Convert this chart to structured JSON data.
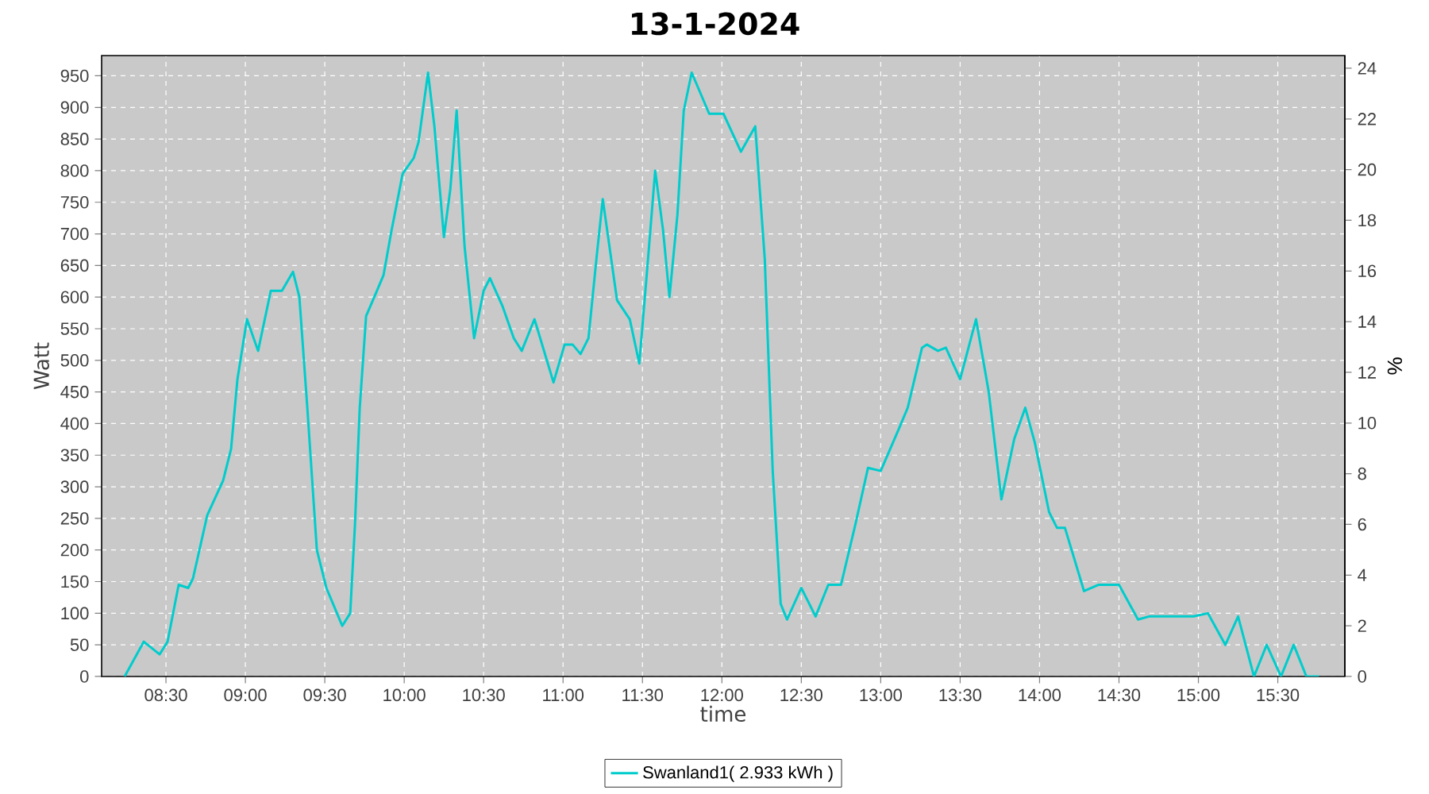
{
  "chart_data": {
    "type": "line",
    "title": "13-1-2024",
    "xlabel": "time",
    "ylabel": "Watt",
    "y2label": "%",
    "xlim": [
      8.095,
      15.922
    ],
    "ylim": [
      0,
      982
    ],
    "y2lim": [
      0,
      24.5
    ],
    "xticks": [
      {
        "value": 8.5,
        "label": "08:30"
      },
      {
        "value": 9,
        "label": "09:00"
      },
      {
        "value": 9.5,
        "label": "09:30"
      },
      {
        "value": 10,
        "label": "10:00"
      },
      {
        "value": 10.5,
        "label": "10:30"
      },
      {
        "value": 11,
        "label": "11:00"
      },
      {
        "value": 11.5,
        "label": "11:30"
      },
      {
        "value": 12,
        "label": "12:00"
      },
      {
        "value": 12.5,
        "label": "12:30"
      },
      {
        "value": 13,
        "label": "13:00"
      },
      {
        "value": 13.5,
        "label": "13:30"
      },
      {
        "value": 14,
        "label": "14:00"
      },
      {
        "value": 14.5,
        "label": "14:30"
      },
      {
        "value": 15,
        "label": "15:00"
      },
      {
        "value": 15.5,
        "label": "15:30"
      }
    ],
    "yticks": [
      0,
      50,
      100,
      150,
      200,
      250,
      300,
      350,
      400,
      450,
      500,
      550,
      600,
      650,
      700,
      750,
      800,
      850,
      900,
      950
    ],
    "y2ticks": [
      0,
      2,
      4,
      6,
      8,
      10,
      12,
      14,
      16,
      18,
      20,
      22,
      24
    ],
    "grid": true,
    "legend": "bottom",
    "series": [
      {
        "name": "Swanland1( 2.933 kWh )",
        "color": "#00cccc",
        "x": [
          8.24,
          8.36,
          8.46,
          8.51,
          8.58,
          8.64,
          8.67,
          8.76,
          8.86,
          8.91,
          8.95,
          9.01,
          9.08,
          9.16,
          9.23,
          9.3,
          9.34,
          9.39,
          9.45,
          9.51,
          9.61,
          9.66,
          9.69,
          9.72,
          9.76,
          9.82,
          9.87,
          9.92,
          9.99,
          10.06,
          10.09,
          10.15,
          10.19,
          10.25,
          10.29,
          10.33,
          10.38,
          10.44,
          10.5,
          10.54,
          10.62,
          10.69,
          10.74,
          10.82,
          10.94,
          11.01,
          11.06,
          11.11,
          11.16,
          11.21,
          11.25,
          11.34,
          11.42,
          11.48,
          11.53,
          11.58,
          11.63,
          11.67,
          11.72,
          11.76,
          11.81,
          11.92,
          12.01,
          12.12,
          12.21,
          12.27,
          12.32,
          12.37,
          12.41,
          12.5,
          12.59,
          12.67,
          12.75,
          12.84,
          12.92,
          13.0,
          13.12,
          13.17,
          13.26,
          13.29,
          13.36,
          13.41,
          13.5,
          13.6,
          13.68,
          13.76,
          13.84,
          13.91,
          13.97,
          14.06,
          14.11,
          14.16,
          14.28,
          14.37,
          14.5,
          14.62,
          14.69,
          14.97,
          15.06,
          15.17,
          15.25,
          15.35,
          15.43,
          15.52,
          15.6,
          15.68,
          15.76
        ],
        "values": [
          0,
          55,
          35,
          55,
          145,
          140,
          155,
          255,
          310,
          360,
          470,
          565,
          515,
          610,
          610,
          640,
          600,
          425,
          200,
          140,
          80,
          100,
          240,
          425,
          570,
          605,
          635,
          705,
          795,
          820,
          845,
          955,
          870,
          695,
          770,
          895,
          680,
          535,
          610,
          630,
          585,
          535,
          515,
          565,
          465,
          525,
          525,
          510,
          535,
          660,
          755,
          595,
          565,
          495,
          645,
          800,
          705,
          600,
          730,
          895,
          955,
          890,
          890,
          830,
          870,
          660,
          325,
          115,
          90,
          140,
          95,
          145,
          145,
          240,
          330,
          325,
          395,
          425,
          520,
          525,
          515,
          520,
          470,
          565,
          450,
          280,
          375,
          425,
          370,
          260,
          235,
          235,
          135,
          145,
          145,
          90,
          95,
          95,
          100,
          50,
          95,
          0,
          50,
          0,
          50,
          0,
          0
        ]
      }
    ]
  }
}
